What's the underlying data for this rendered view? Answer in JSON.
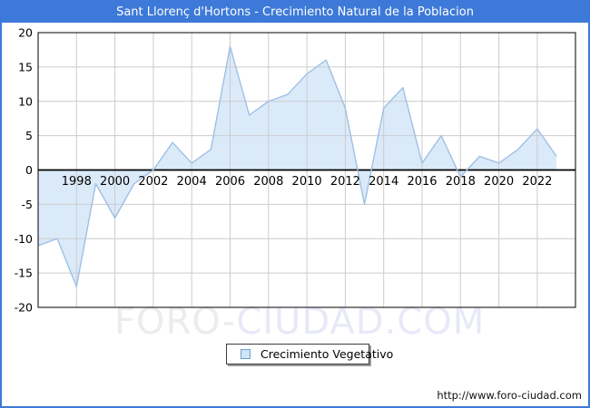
{
  "title": "Sant Llorenç d'Hortons - Crecimiento Natural de la Poblacion",
  "legend": {
    "label": "Crecimiento Vegetativo"
  },
  "watermark": {
    "part1": "FORO-",
    "part2": "CIUDAD.COM"
  },
  "footer": {
    "url": "http://www.foro-ciudad.com"
  },
  "colors": {
    "titlebar_bg": "#3d79d8",
    "frame_border": "#3d79d8",
    "title_text": "#ffffff",
    "line": "#9fc0e5",
    "fill": "#dbeaf9",
    "grid": "#cccccc",
    "axis": "#000000",
    "tick_text": "#000000",
    "legend_marker_fill": "#cfe4f6",
    "legend_marker_border": "#6f9fd0",
    "watermark_left": "#ececec",
    "watermark_right": "#e7e9f7"
  },
  "chart_data": {
    "type": "area",
    "title": "Sant Llorenç d'Hortons - Crecimiento Natural de la Poblacion",
    "series_name": "Crecimiento Vegetativo",
    "x": [
      1996,
      1997,
      1998,
      1999,
      2000,
      2001,
      2002,
      2003,
      2004,
      2005,
      2006,
      2007,
      2008,
      2009,
      2010,
      2011,
      2012,
      2013,
      2014,
      2015,
      2016,
      2017,
      2018,
      2019,
      2020,
      2021,
      2022,
      2023
    ],
    "values": [
      -11,
      -10,
      -17,
      -2,
      -7,
      -2,
      0,
      4,
      1,
      3,
      18,
      8,
      10,
      11,
      14,
      16,
      9,
      -5,
      9,
      12,
      1,
      5,
      -1,
      2,
      1,
      3,
      6,
      2
    ],
    "ylim": [
      -20,
      20
    ],
    "xticks": [
      1998,
      2000,
      2002,
      2004,
      2006,
      2008,
      2010,
      2012,
      2014,
      2016,
      2018,
      2020,
      2022
    ],
    "yticks": [
      20,
      15,
      10,
      5,
      0,
      -5,
      -10,
      -15,
      -20
    ],
    "grid": true,
    "legend_position": "bottom-center",
    "xlabel": "",
    "ylabel": ""
  }
}
